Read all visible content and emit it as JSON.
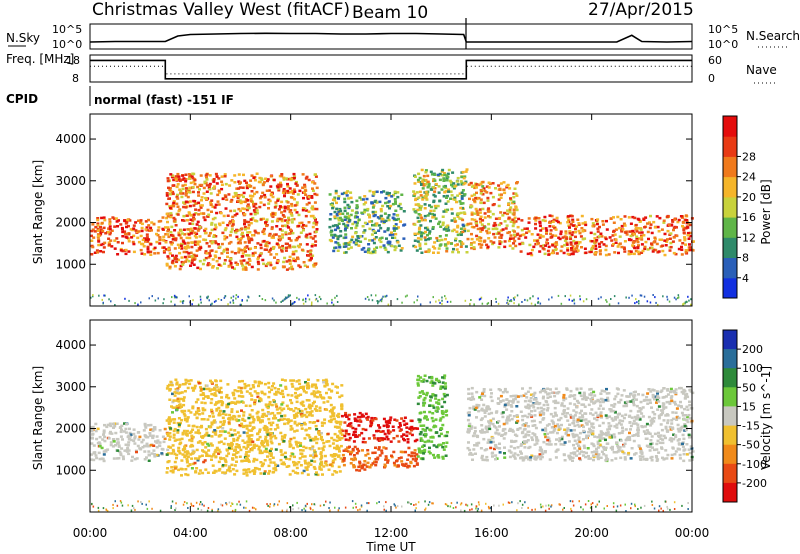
{
  "chart_data": [
    {
      "type": "line",
      "panel": "sky-noise",
      "title": "Christmas Valley West (fitACF)",
      "beam_label": "Beam 10",
      "date": "27/Apr/2015",
      "left_label": "N.Sky",
      "right_label": "N.Search",
      "left_ticks": [
        "10^5",
        "10^0"
      ],
      "right_ticks": [
        "10^5",
        "10^0"
      ],
      "series": [
        {
          "values_t": [
            0,
            1,
            2,
            3,
            3.5,
            4,
            5,
            6,
            7,
            8,
            9,
            10,
            11,
            12,
            13,
            14,
            14.9,
            15,
            16,
            17,
            18,
            19,
            20,
            21,
            21.6,
            22,
            23,
            24
          ],
          "values_y": [
            0.28,
            0.3,
            0.3,
            0.3,
            0.52,
            0.58,
            0.6,
            0.62,
            0.63,
            0.62,
            0.62,
            0.6,
            0.6,
            0.62,
            0.62,
            0.6,
            0.58,
            0.28,
            0.28,
            0.28,
            0.28,
            0.28,
            0.28,
            0.28,
            0.55,
            0.3,
            0.28,
            0.3
          ]
        }
      ]
    },
    {
      "type": "line",
      "panel": "frequency",
      "left_label": "Freq. [MHz]",
      "right_label": "Nave",
      "left_ticks": [
        "18",
        "8"
      ],
      "right_ticks": [
        "60",
        "0"
      ],
      "cpid_label": "CPID",
      "cpid_text": "normal (fast) -151 IF",
      "series": [
        {
          "name_hidden": "freq",
          "values_t": [
            0,
            3,
            3,
            15,
            15,
            24
          ],
          "values_y": [
            0.8,
            0.8,
            0.12,
            0.12,
            0.8,
            0.8
          ]
        },
        {
          "name_hidden": "nave",
          "values_t": [
            0,
            3,
            3,
            15,
            15,
            24
          ],
          "values_y": [
            0.58,
            0.58,
            0.3,
            0.3,
            0.58,
            0.58
          ]
        }
      ]
    },
    {
      "type": "heatmap",
      "panel": "power",
      "ylabel": "Slant Range [km]",
      "yticks": [
        "1000",
        "2000",
        "3000",
        "4000"
      ],
      "ylim": [
        0,
        4600
      ],
      "xlim_hours": [
        0,
        24
      ],
      "colorbar_label": "Power [dB]",
      "colorbar_ticks": [
        "4",
        "8",
        "12",
        "16",
        "20",
        "24",
        "28"
      ],
      "colorbar_colors": [
        "#1230e0",
        "#2a5fb8",
        "#2f8a6a",
        "#5fb548",
        "#c8d23c",
        "#f5b52a",
        "#f07a1c",
        "#e83a14",
        "#e40c0c"
      ],
      "echo_regions": [
        {
          "t": [
            0,
            3
          ],
          "r": [
            1250,
            2150
          ],
          "level": 0.85
        },
        {
          "t": [
            3,
            9
          ],
          "r": [
            900,
            3200
          ],
          "level": 0.75
        },
        {
          "t": [
            9.5,
            12.5
          ],
          "r": [
            1300,
            2800
          ],
          "level": 0.35
        },
        {
          "t": [
            12.8,
            15
          ],
          "r": [
            1300,
            3300
          ],
          "level": 0.45
        },
        {
          "t": [
            15,
            17
          ],
          "r": [
            1400,
            3000
          ],
          "level": 0.7
        },
        {
          "t": [
            17,
            24
          ],
          "r": [
            1250,
            2200
          ],
          "level": 0.8
        }
      ]
    },
    {
      "type": "heatmap",
      "panel": "velocity",
      "ylabel": "Slant Range [km]",
      "yticks": [
        "1000",
        "2000",
        "3000",
        "4000"
      ],
      "ylim": [
        0,
        4600
      ],
      "xlabel": "Time UT",
      "xticks": [
        "00:00",
        "04:00",
        "08:00",
        "12:00",
        "16:00",
        "20:00",
        "00:00"
      ],
      "colorbar_label": "Velocity [m s^-1]",
      "colorbar_ticks": [
        "200",
        "100",
        "50",
        "15",
        "-15",
        "-50",
        "-100",
        "-200"
      ],
      "colorbar_colors": [
        "#1a2fb0",
        "#2a6e9a",
        "#2e8a3a",
        "#6cc83a",
        "#c8c8c0",
        "#f0c030",
        "#f08a1a",
        "#e84a14",
        "#e00c0c"
      ],
      "echo_regions": [
        {
          "t": [
            0,
            3
          ],
          "r": [
            1250,
            2150
          ],
          "value": 0
        },
        {
          "t": [
            3,
            10
          ],
          "r": [
            900,
            3200
          ],
          "value": -20
        },
        {
          "t": [
            10,
            11.2
          ],
          "r": [
            1700,
            2400
          ],
          "value": -210
        },
        {
          "t": [
            10,
            11.2
          ],
          "r": [
            1000,
            1600
          ],
          "value": -100
        },
        {
          "t": [
            11.2,
            13
          ],
          "r": [
            1700,
            2300
          ],
          "value": -210
        },
        {
          "t": [
            11.2,
            13
          ],
          "r": [
            1100,
            1600
          ],
          "value": -110
        },
        {
          "t": [
            13,
            14.2
          ],
          "r": [
            1300,
            3300
          ],
          "value": 40
        },
        {
          "t": [
            15,
            24
          ],
          "r": [
            1250,
            3000
          ],
          "value": 0
        }
      ]
    }
  ]
}
